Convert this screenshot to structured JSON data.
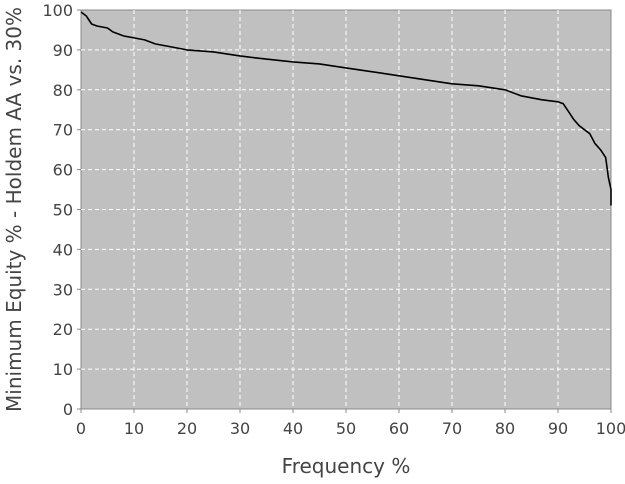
{
  "colors": {
    "plot_background": "#c0c0c0",
    "gridline": "#ffffff",
    "series_line": "#000000",
    "text": "#444444"
  },
  "chart_data": {
    "type": "line",
    "title": "",
    "xlabel": "Frequency %",
    "ylabel": "Minimum Equity % - Holdem AA vs. 30%",
    "xlim": [
      0,
      100
    ],
    "ylim": [
      0,
      100
    ],
    "xticks": [
      0,
      10,
      20,
      30,
      40,
      50,
      60,
      70,
      80,
      90,
      100
    ],
    "yticks": [
      0,
      10,
      20,
      30,
      40,
      50,
      60,
      70,
      80,
      90,
      100
    ],
    "grid": true,
    "legend": "none",
    "series": [
      {
        "name": "Minimum Equity",
        "x": [
          0,
          1,
          2,
          3,
          5,
          6,
          8,
          10,
          12,
          14,
          16,
          20,
          25,
          30,
          33,
          40,
          45,
          50,
          55,
          60,
          65,
          70,
          75,
          80,
          83,
          87,
          90,
          91,
          92,
          93,
          94,
          95,
          96,
          97,
          98,
          99,
          99.5,
          100,
          100
        ],
        "y": [
          99.5,
          98.5,
          96.5,
          96,
          95.5,
          94.5,
          93.5,
          93,
          92.5,
          91.5,
          91,
          90,
          89.5,
          88.5,
          88,
          87,
          86.5,
          85.5,
          84.5,
          83.5,
          82.5,
          81.5,
          81,
          80,
          78.5,
          77.5,
          77,
          76.5,
          74.5,
          72.5,
          71,
          70,
          69,
          66.5,
          65,
          63,
          58,
          55,
          51
        ]
      }
    ]
  }
}
